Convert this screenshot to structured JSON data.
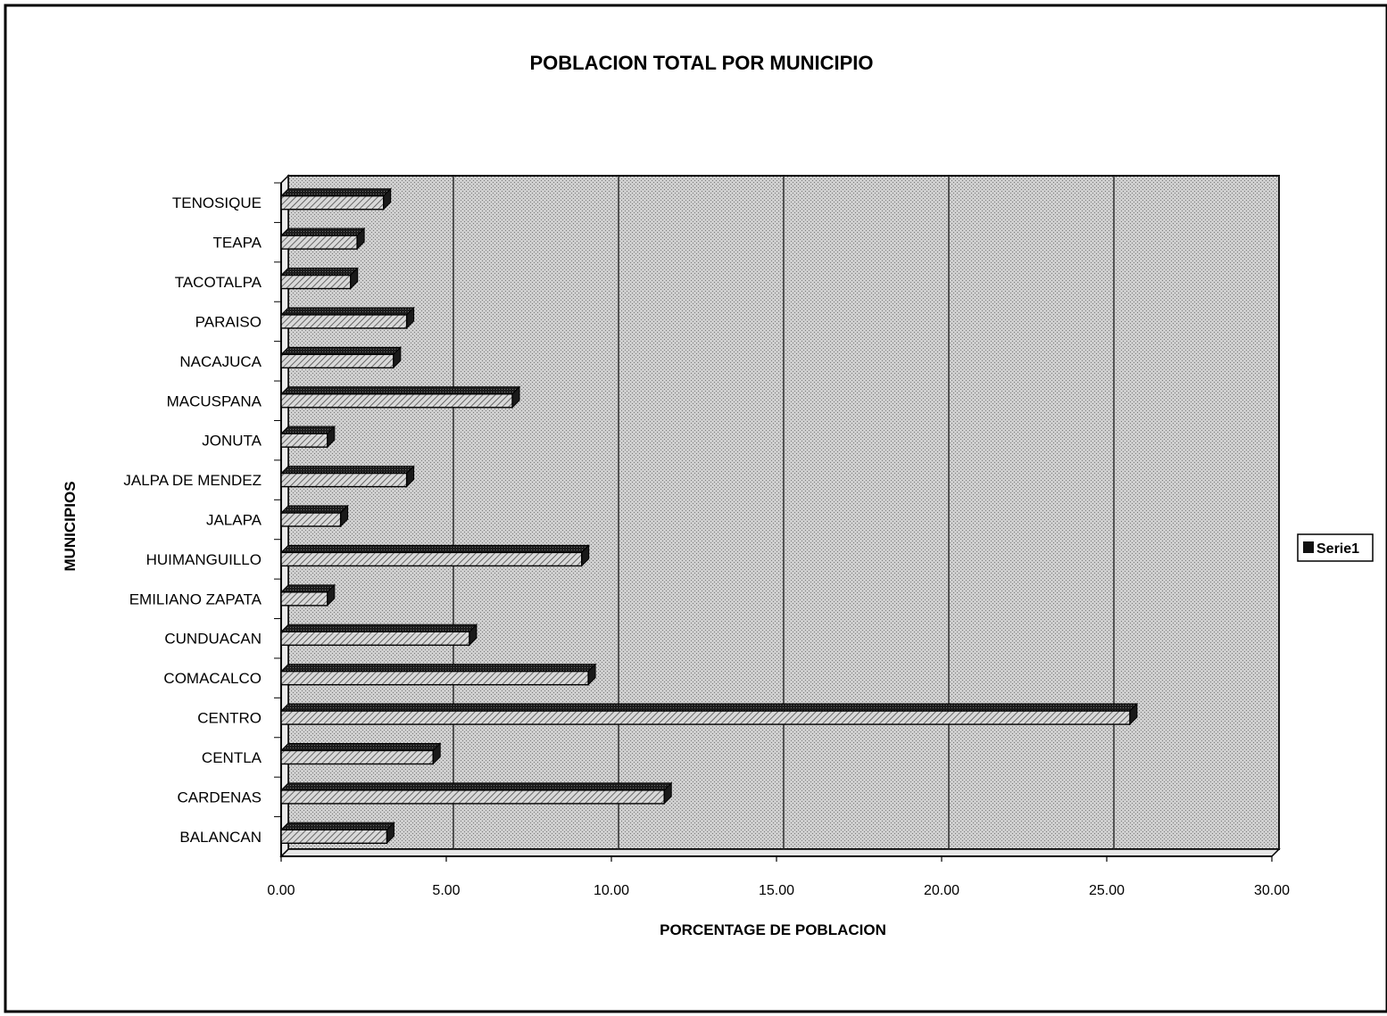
{
  "colors": {
    "bar_face": "#bdbdbd",
    "bar_dark": "#1a1a1a",
    "plot_fill": "#c4c4c4",
    "grid": "#222222",
    "legend_swatch": "#111111"
  },
  "chart_data": {
    "type": "bar",
    "orientation": "horizontal",
    "three_d": true,
    "title": "POBLACION TOTAL POR MUNICIPIO",
    "xlabel": "PORCENTAGE DE POBLACION",
    "ylabel": "MUNICIPIOS",
    "xlim": [
      0,
      30
    ],
    "x_ticks": [
      "0.00",
      "5.00",
      "10.00",
      "15.00",
      "20.00",
      "25.00",
      "30.00"
    ],
    "grid": true,
    "legend_position": "right",
    "categories": [
      "TENOSIQUE",
      "TEAPA",
      "TACOTALPA",
      "PARAISO",
      "NACAJUCA",
      "MACUSPANA",
      "JONUTA",
      "JALPA DE MENDEZ",
      "JALAPA",
      "HUIMANGUILLO",
      "EMILIANO ZAPATA",
      "CUNDUACAN",
      "COMACALCO",
      "CENTRO",
      "CENTLA",
      "CARDENAS",
      "BALANCAN"
    ],
    "series": [
      {
        "name": "Serie1",
        "values": [
          3.1,
          2.3,
          2.1,
          3.8,
          3.4,
          7.0,
          1.4,
          3.8,
          1.8,
          9.1,
          1.4,
          5.7,
          9.3,
          25.7,
          4.6,
          11.6,
          3.2
        ]
      }
    ]
  }
}
